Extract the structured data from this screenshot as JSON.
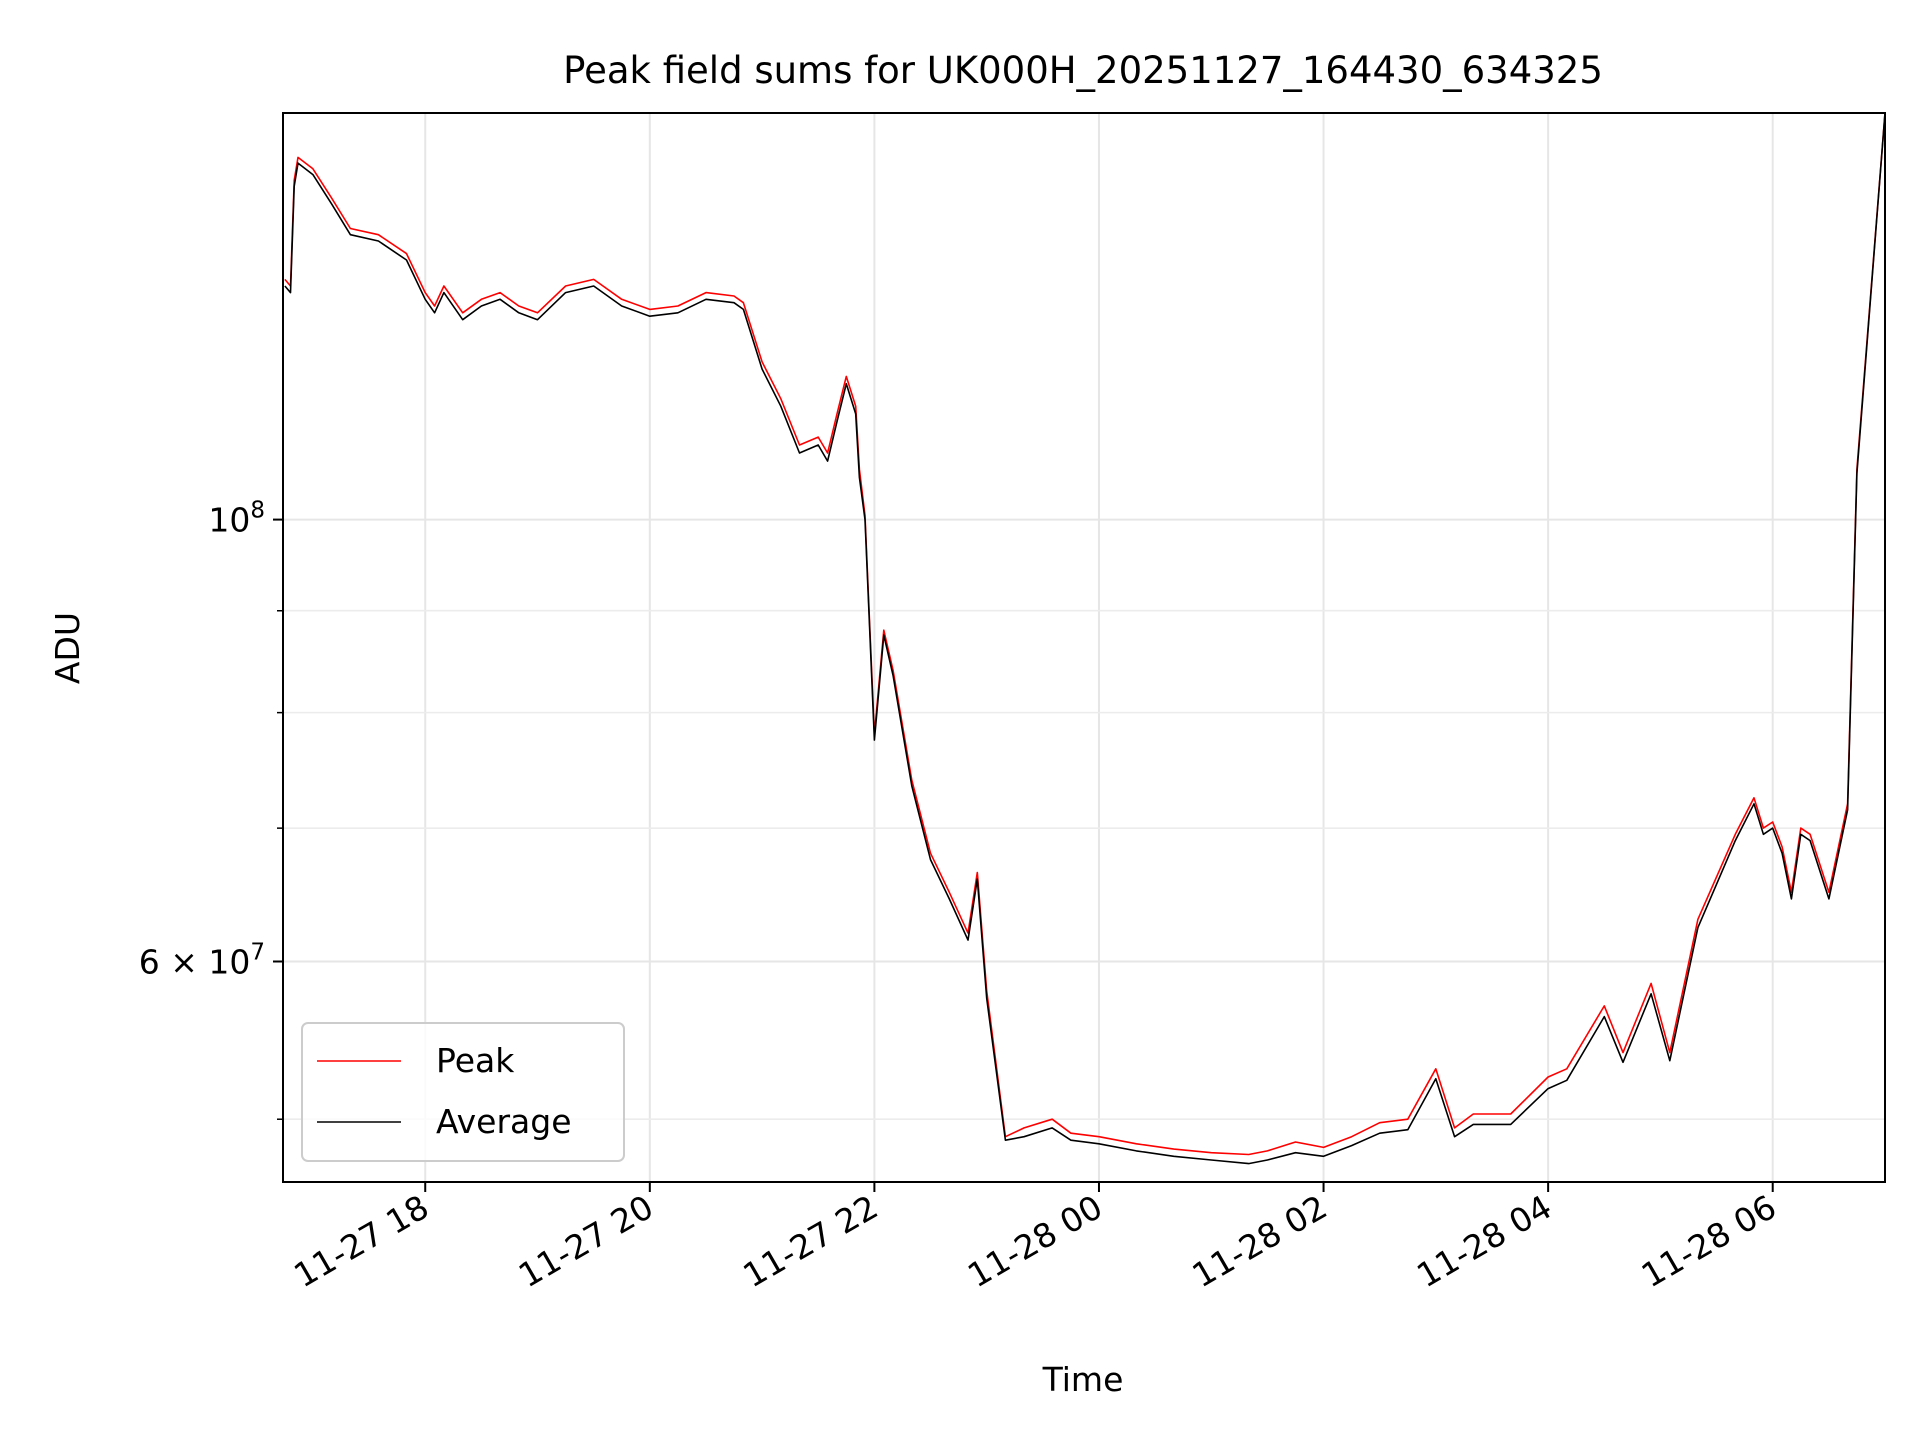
{
  "chart_data": {
    "type": "line",
    "title": "Peak field sums for UK000H_20251127_164430_634325",
    "xlabel": "Time",
    "ylabel": "ADU",
    "yscale": "log",
    "x_range": [
      "2025-11-27T16:44",
      "2025-11-28T07:00"
    ],
    "ylim": [
      46500000,
      160000000
    ],
    "grid": true,
    "legend": "lower-left",
    "xticks": [
      {
        "value": "2025-11-27T18:00",
        "label": "11-27 18"
      },
      {
        "value": "2025-11-27T20:00",
        "label": "11-27 20"
      },
      {
        "value": "2025-11-27T22:00",
        "label": "11-27 22"
      },
      {
        "value": "2025-11-28T00:00",
        "label": "11-28 00"
      },
      {
        "value": "2025-11-28T02:00",
        "label": "11-28 02"
      },
      {
        "value": "2025-11-28T04:00",
        "label": "11-28 04"
      },
      {
        "value": "2025-11-28T06:00",
        "label": "11-28 06"
      }
    ],
    "yticks_major": [
      {
        "value": 100000000,
        "label": "10",
        "exp": "8"
      },
      {
        "value": 60000000,
        "label": "6 × 10",
        "exp": "7"
      }
    ],
    "yticks_minor": [
      50000000,
      70000000,
      80000000,
      90000000
    ],
    "x": [
      "2025-11-27T16:45",
      "2025-11-27T16:48",
      "2025-11-27T16:50",
      "2025-11-27T16:52",
      "2025-11-27T17:00",
      "2025-11-27T17:10",
      "2025-11-27T17:20",
      "2025-11-27T17:35",
      "2025-11-27T17:50",
      "2025-11-27T18:00",
      "2025-11-27T18:05",
      "2025-11-27T18:10",
      "2025-11-27T18:20",
      "2025-11-27T18:30",
      "2025-11-27T18:40",
      "2025-11-27T18:50",
      "2025-11-27T19:00",
      "2025-11-27T19:15",
      "2025-11-27T19:30",
      "2025-11-27T19:45",
      "2025-11-27T20:00",
      "2025-11-27T20:15",
      "2025-11-27T20:30",
      "2025-11-27T20:45",
      "2025-11-27T20:50",
      "2025-11-27T21:00",
      "2025-11-27T21:10",
      "2025-11-27T21:20",
      "2025-11-27T21:30",
      "2025-11-27T21:35",
      "2025-11-27T21:40",
      "2025-11-27T21:45",
      "2025-11-27T21:50",
      "2025-11-27T21:52",
      "2025-11-27T21:55",
      "2025-11-27T22:00",
      "2025-11-27T22:05",
      "2025-11-27T22:10",
      "2025-11-27T22:20",
      "2025-11-27T22:30",
      "2025-11-27T22:40",
      "2025-11-27T22:50",
      "2025-11-27T22:55",
      "2025-11-27T23:00",
      "2025-11-27T23:10",
      "2025-11-27T23:20",
      "2025-11-27T23:35",
      "2025-11-27T23:45",
      "2025-11-28T00:00",
      "2025-11-28T00:20",
      "2025-11-28T00:40",
      "2025-11-28T01:00",
      "2025-11-28T01:20",
      "2025-11-28T01:30",
      "2025-11-28T01:45",
      "2025-11-28T02:00",
      "2025-11-28T02:15",
      "2025-11-28T02:30",
      "2025-11-28T02:45",
      "2025-11-28T03:00",
      "2025-11-28T03:10",
      "2025-11-28T03:20",
      "2025-11-28T03:40",
      "2025-11-28T04:00",
      "2025-11-28T04:10",
      "2025-11-28T04:30",
      "2025-11-28T04:40",
      "2025-11-28T04:55",
      "2025-11-28T05:05",
      "2025-11-28T05:20",
      "2025-11-28T05:40",
      "2025-11-28T05:50",
      "2025-11-28T05:55",
      "2025-11-28T06:00",
      "2025-11-28T06:05",
      "2025-11-28T06:10",
      "2025-11-28T06:15",
      "2025-11-28T06:20",
      "2025-11-28T06:30",
      "2025-11-28T06:40",
      "2025-11-28T06:45",
      "2025-11-28T07:00"
    ],
    "series": [
      {
        "name": "Peak",
        "color": "#ff0000",
        "values": [
          132000000,
          131000000,
          148000000,
          152000000,
          150000000,
          145000000,
          140000000,
          139000000,
          136000000,
          130000000,
          128000000,
          131000000,
          127000000,
          129000000,
          130000000,
          128000000,
          127000000,
          131000000,
          132000000,
          129000000,
          127500000,
          128000000,
          130000000,
          129500000,
          128500000,
          120000000,
          115000000,
          109000000,
          110000000,
          108000000,
          113000000,
          118000000,
          114000000,
          106000000,
          100500000,
          78000000,
          88000000,
          84000000,
          74000000,
          68000000,
          65000000,
          62000000,
          66500000,
          58000000,
          49000000,
          49500000,
          50000000,
          49200000,
          49000000,
          48600000,
          48300000,
          48100000,
          48000000,
          48200000,
          48700000,
          48400000,
          49000000,
          49800000,
          50000000,
          53000000,
          49500000,
          50300000,
          50300000,
          52500000,
          53000000,
          57000000,
          54000000,
          58500000,
          54000000,
          63000000,
          69500000,
          72500000,
          70000000,
          70500000,
          68500000,
          65000000,
          70000000,
          69500000,
          65000000,
          72000000,
          106000000,
          160000000
        ]
      },
      {
        "name": "Average",
        "color": "#000000",
        "values": [
          131000000,
          130000000,
          147000000,
          151000000,
          149000000,
          144000000,
          139000000,
          138000000,
          135000000,
          129000000,
          127000000,
          130000000,
          126000000,
          128000000,
          129000000,
          127000000,
          126000000,
          130000000,
          131000000,
          128000000,
          126500000,
          127000000,
          129000000,
          128500000,
          127500000,
          119000000,
          114000000,
          108000000,
          109000000,
          107000000,
          112000000,
          117000000,
          113000000,
          105000000,
          100000000,
          77500000,
          87500000,
          83500000,
          73500000,
          67500000,
          64500000,
          61500000,
          66000000,
          57500000,
          48800000,
          49000000,
          49500000,
          48800000,
          48600000,
          48200000,
          47900000,
          47700000,
          47500000,
          47700000,
          48100000,
          47900000,
          48500000,
          49200000,
          49400000,
          52400000,
          49000000,
          49700000,
          49700000,
          51800000,
          52300000,
          56300000,
          53400000,
          57800000,
          53500000,
          62400000,
          69000000,
          72000000,
          69500000,
          70000000,
          68000000,
          64500000,
          69500000,
          69000000,
          64500000,
          71500000,
          105500000,
          160000000
        ]
      }
    ]
  }
}
